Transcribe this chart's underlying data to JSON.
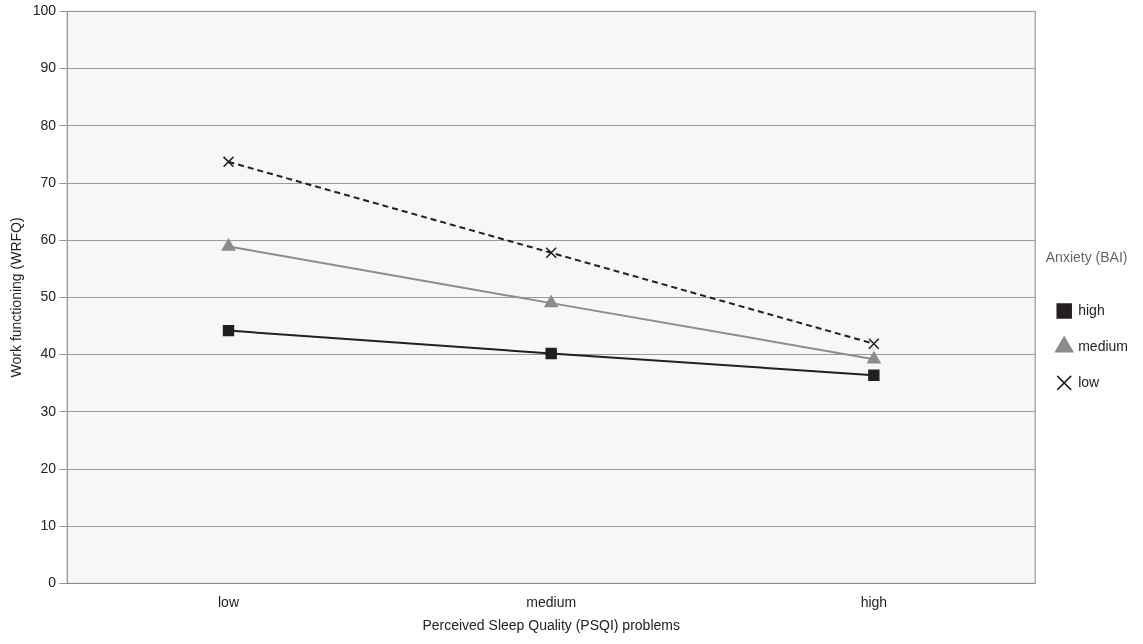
{
  "chart_data": {
    "type": "line",
    "xlabel": "Perceived Sleep Quality (PSQI) problems",
    "ylabel": "Work functioning (WRFQ)",
    "categories": [
      "low",
      "medium",
      "high"
    ],
    "legend_title": "Anxiety (BAI)",
    "legend": "right",
    "series": [
      {
        "name": "high",
        "color": "#231f20",
        "values": [
          44.2,
          40.2,
          36.4
        ],
        "marker": "square",
        "line_style": "solid"
      },
      {
        "name": "medium",
        "color": "#8c8c8c",
        "values": [
          58.9,
          49.0,
          39.2
        ],
        "marker": "triangle",
        "line_style": "solid"
      },
      {
        "name": "low",
        "color": "#231f20",
        "values": [
          73.7,
          57.8,
          41.9
        ],
        "marker": "cross",
        "line_style": "dashed"
      }
    ],
    "ylim": [
      0,
      100
    ],
    "yticks": [
      0,
      10,
      20,
      30,
      40,
      50,
      60,
      70,
      80,
      90,
      100
    ],
    "grid": "y"
  }
}
